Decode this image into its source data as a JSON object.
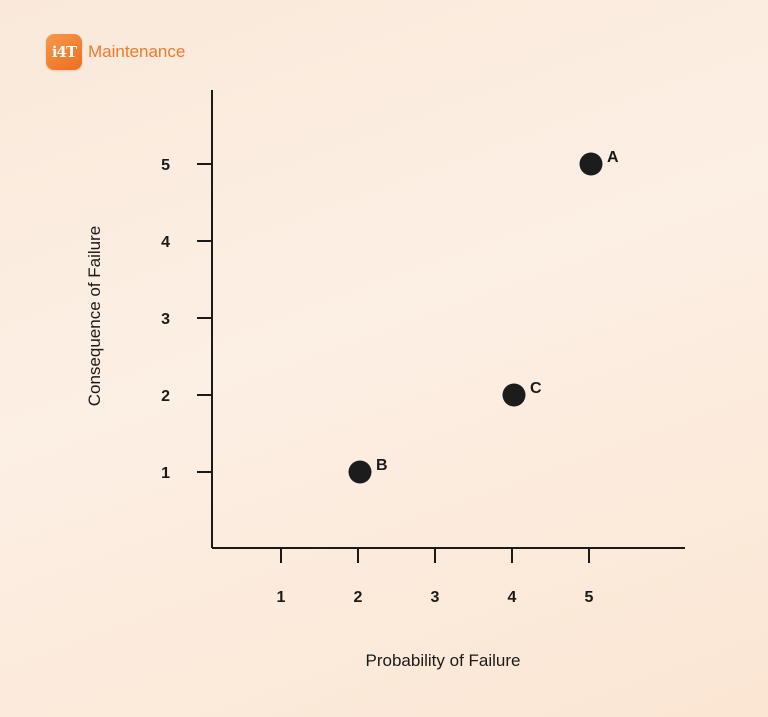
{
  "brand": {
    "mark": "i4T",
    "name": "Maintenance"
  },
  "chart_data": {
    "type": "scatter",
    "xlabel": "Probability of Failure",
    "ylabel": "Consequence of Failure",
    "xlim": [
      0,
      6.3
    ],
    "ylim": [
      0,
      6
    ],
    "xticks": [
      1,
      2,
      3,
      4,
      5
    ],
    "yticks": [
      1,
      2,
      3,
      4,
      5
    ],
    "grid": false,
    "points": [
      {
        "label": "A",
        "x": 5,
        "y": 5
      },
      {
        "label": "B",
        "x": 2,
        "y": 1
      },
      {
        "label": "C",
        "x": 4,
        "y": 2
      }
    ],
    "point_color": "#1c1c1c",
    "axis_color": "#1a1a1a"
  }
}
